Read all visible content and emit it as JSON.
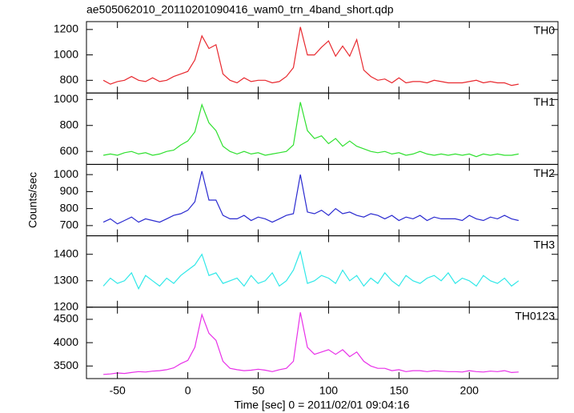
{
  "chart_data": {
    "type": "line",
    "title": "ae505062010_20110201090416_wam0_trn_4band_short.qdp",
    "xlabel": "Time [sec] 0 = 2011/02/01 09:04:16",
    "ylabel": "Counts/sec",
    "xlim": [
      -72,
      263
    ],
    "xticks": [
      -50,
      0,
      50,
      100,
      150,
      200
    ],
    "x": [
      -60,
      -55,
      -50,
      -45,
      -40,
      -35,
      -30,
      -25,
      -20,
      -15,
      -10,
      -5,
      0,
      5,
      10,
      15,
      20,
      25,
      30,
      35,
      40,
      45,
      50,
      55,
      60,
      65,
      70,
      75,
      80,
      85,
      90,
      95,
      100,
      105,
      110,
      115,
      120,
      125,
      130,
      135,
      140,
      145,
      150,
      155,
      160,
      165,
      170,
      175,
      180,
      185,
      190,
      195,
      200,
      205,
      210,
      215,
      220,
      225,
      230,
      235
    ],
    "series": [
      {
        "name": "TH0",
        "color": "#e8282e",
        "ylim": [
          700,
          1262
        ],
        "yticks": [
          800,
          1000,
          1200
        ],
        "values": [
          800,
          770,
          790,
          800,
          830,
          800,
          790,
          820,
          790,
          800,
          830,
          850,
          870,
          960,
          1150,
          1050,
          1080,
          850,
          800,
          780,
          820,
          790,
          800,
          800,
          780,
          790,
          830,
          900,
          1220,
          1000,
          1000,
          1060,
          1110,
          990,
          1070,
          990,
          1120,
          880,
          830,
          800,
          810,
          780,
          820,
          780,
          790,
          790,
          780,
          800,
          790,
          780,
          780,
          780,
          790,
          800,
          780,
          790,
          780,
          780,
          760,
          770
        ]
      },
      {
        "name": "TH1",
        "color": "#2fe02f",
        "ylim": [
          500,
          1050
        ],
        "yticks": [
          600,
          800,
          1000
        ],
        "values": [
          570,
          580,
          570,
          590,
          600,
          580,
          590,
          570,
          580,
          600,
          610,
          650,
          680,
          750,
          960,
          820,
          760,
          640,
          600,
          580,
          600,
          580,
          590,
          570,
          580,
          590,
          600,
          650,
          980,
          760,
          700,
          720,
          660,
          700,
          640,
          680,
          640,
          620,
          600,
          590,
          600,
          580,
          590,
          570,
          580,
          600,
          580,
          570,
          580,
          570,
          580,
          570,
          580,
          560,
          580,
          570,
          580,
          570,
          570,
          580
        ]
      },
      {
        "name": "TH2",
        "color": "#2a2ad0",
        "ylim": [
          640,
          1060
        ],
        "yticks": [
          700,
          800,
          900,
          1000
        ],
        "values": [
          720,
          740,
          710,
          730,
          750,
          720,
          740,
          730,
          720,
          740,
          760,
          770,
          790,
          840,
          1020,
          850,
          850,
          760,
          740,
          740,
          760,
          730,
          750,
          740,
          720,
          740,
          760,
          770,
          1000,
          780,
          770,
          790,
          760,
          800,
          770,
          780,
          760,
          750,
          770,
          760,
          740,
          760,
          730,
          750,
          740,
          760,
          730,
          750,
          740,
          740,
          740,
          730,
          760,
          740,
          730,
          750,
          740,
          760,
          740,
          730
        ]
      },
      {
        "name": "TH3",
        "color": "#30e8e8",
        "ylim": [
          1200,
          1470
        ],
        "yticks": [
          1200,
          1300,
          1400
        ],
        "values": [
          1280,
          1310,
          1290,
          1300,
          1330,
          1270,
          1320,
          1300,
          1280,
          1310,
          1290,
          1320,
          1340,
          1360,
          1400,
          1320,
          1330,
          1290,
          1300,
          1310,
          1280,
          1320,
          1290,
          1300,
          1330,
          1280,
          1300,
          1340,
          1410,
          1290,
          1300,
          1320,
          1310,
          1290,
          1340,
          1300,
          1320,
          1280,
          1310,
          1290,
          1330,
          1300,
          1280,
          1320,
          1300,
          1290,
          1310,
          1320,
          1300,
          1330,
          1290,
          1310,
          1300,
          1280,
          1320,
          1300,
          1290,
          1310,
          1280,
          1300
        ]
      },
      {
        "name": "TH0123",
        "color": "#e830e8",
        "ylim": [
          3230,
          4760
        ],
        "yticks": [
          3500,
          4000,
          4500
        ],
        "values": [
          3320,
          3330,
          3350,
          3340,
          3360,
          3380,
          3370,
          3390,
          3400,
          3420,
          3460,
          3550,
          3620,
          3900,
          4600,
          4200,
          4050,
          3600,
          3450,
          3420,
          3400,
          3410,
          3430,
          3410,
          3380,
          3420,
          3450,
          3600,
          4650,
          3900,
          3750,
          3800,
          3850,
          3750,
          3850,
          3700,
          3800,
          3600,
          3500,
          3450,
          3450,
          3400,
          3420,
          3380,
          3400,
          3400,
          3380,
          3400,
          3390,
          3380,
          3380,
          3370,
          3400,
          3380,
          3370,
          3390,
          3380,
          3400,
          3360,
          3370
        ]
      }
    ]
  }
}
